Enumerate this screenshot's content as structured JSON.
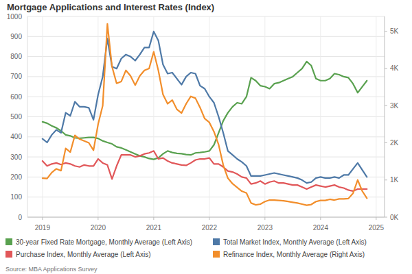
{
  "chart_data": {
    "type": "line",
    "title": "Mortgage Applications and Interest Rates (Index)",
    "source": "Source: MBA Applications Survey",
    "x": [
      2019,
      2019.083,
      2019.167,
      2019.25,
      2019.333,
      2019.417,
      2019.5,
      2019.583,
      2019.667,
      2019.75,
      2019.833,
      2019.917,
      2020,
      2020.083,
      2020.167,
      2020.25,
      2020.333,
      2020.417,
      2020.5,
      2020.583,
      2020.667,
      2020.75,
      2020.833,
      2020.917,
      2021,
      2021.083,
      2021.167,
      2021.25,
      2021.333,
      2021.417,
      2021.5,
      2021.583,
      2021.667,
      2021.75,
      2021.833,
      2021.917,
      2022,
      2022.083,
      2022.167,
      2022.25,
      2022.333,
      2022.417,
      2022.5,
      2022.583,
      2022.667,
      2022.75,
      2022.833,
      2022.917,
      2023,
      2023.083,
      2023.167,
      2023.25,
      2023.333,
      2023.417,
      2023.5,
      2023.583,
      2023.667,
      2023.75,
      2023.833,
      2023.917,
      2024,
      2024.083,
      2024.167,
      2024.25,
      2024.333,
      2024.417,
      2024.5,
      2024.583,
      2024.667,
      2024.75,
      2024.833
    ],
    "xlim": [
      2018.73,
      2025.15
    ],
    "xticks": [
      2019,
      2020,
      2021,
      2022,
      2023,
      2024,
      2025
    ],
    "ylim": [
      0,
      1000
    ],
    "yticks": [
      0,
      100,
      200,
      300,
      400,
      500,
      600,
      700,
      800,
      900,
      1000
    ],
    "y2lim": [
      0,
      5400
    ],
    "y2ticks": [
      {
        "value": 0,
        "label": "0K"
      },
      {
        "value": 1000,
        "label": "1K"
      },
      {
        "value": 2000,
        "label": "2K"
      },
      {
        "value": 3000,
        "label": "3K"
      },
      {
        "value": 4000,
        "label": "4K"
      },
      {
        "value": 5000,
        "label": "5K"
      }
    ],
    "grid": true,
    "legend": "bottom",
    "series": [
      {
        "name": "30-year Fixed Rate Mortgage, Monthly Average (Left Axis)",
        "color": "#59a14f",
        "values": [
          475,
          468,
          455,
          445,
          430,
          410,
          405,
          395,
          393,
          395,
          397,
          397,
          392,
          380,
          372,
          365,
          350,
          345,
          335,
          325,
          315,
          305,
          300,
          292,
          288,
          295,
          315,
          330,
          322,
          318,
          316,
          312,
          310,
          320,
          322,
          325,
          330,
          360,
          420,
          480,
          520,
          550,
          570,
          565,
          600,
          695,
          680,
          655,
          650,
          640,
          665,
          670,
          680,
          690,
          700,
          720,
          740,
          775,
          755,
          690,
          680,
          680,
          690,
          715,
          710,
          700,
          695,
          665,
          620,
          650,
          680
        ]
      },
      {
        "name": "Total Market Index, Monthly Average (Left Axis)",
        "color": "#4e79a7",
        "values": [
          390,
          372,
          410,
          435,
          420,
          520,
          505,
          575,
          550,
          550,
          545,
          485,
          610,
          700,
          890,
          750,
          740,
          790,
          810,
          800,
          780,
          810,
          845,
          845,
          925,
          880,
          760,
          715,
          720,
          690,
          660,
          700,
          720,
          715,
          655,
          640,
          600,
          570,
          500,
          420,
          330,
          310,
          290,
          275,
          255,
          205,
          205,
          205,
          210,
          215,
          220,
          215,
          210,
          205,
          200,
          195,
          185,
          170,
          175,
          195,
          200,
          195,
          195,
          200,
          195,
          210,
          210,
          240,
          270,
          235,
          200
        ]
      },
      {
        "name": "Purchase Index, Monthly Average (Left Axis)",
        "color": "#e15759",
        "values": [
          280,
          255,
          265,
          270,
          262,
          270,
          265,
          255,
          250,
          260,
          255,
          255,
          290,
          270,
          260,
          190,
          255,
          310,
          310,
          310,
          300,
          305,
          315,
          320,
          330,
          290,
          295,
          280,
          270,
          265,
          260,
          258,
          270,
          285,
          290,
          290,
          295,
          265,
          265,
          250,
          230,
          225,
          215,
          200,
          195,
          165,
          170,
          180,
          165,
          175,
          180,
          170,
          170,
          165,
          160,
          160,
          150,
          140,
          150,
          160,
          155,
          150,
          155,
          160,
          150,
          145,
          135,
          130,
          140,
          140,
          140
        ]
      },
      {
        "name": "Refinance Index, Monthly Average (Right Axis)",
        "color": "#f28e2b",
        "axis": "y2",
        "values": [
          1050,
          1040,
          1200,
          1300,
          1250,
          1850,
          1750,
          2200,
          2100,
          2050,
          2000,
          1800,
          2500,
          3000,
          5200,
          4050,
          3600,
          3650,
          3950,
          3800,
          3550,
          3800,
          3950,
          4000,
          4450,
          3950,
          3300,
          3050,
          3150,
          2900,
          2800,
          3050,
          3250,
          3200,
          2950,
          2650,
          2550,
          2300,
          1950,
          1400,
          1050,
          900,
          800,
          700,
          650,
          380,
          330,
          350,
          420,
          460,
          460,
          450,
          440,
          420,
          400,
          380,
          350,
          320,
          340,
          420,
          450,
          450,
          480,
          460,
          490,
          490,
          500,
          640,
          1000,
          700,
          510
        ]
      }
    ]
  }
}
